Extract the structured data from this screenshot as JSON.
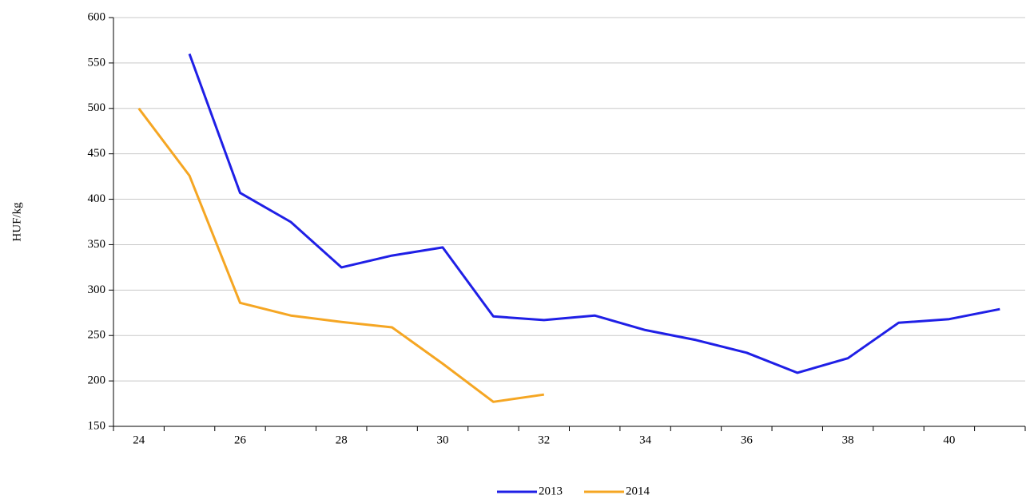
{
  "chart_data": {
    "type": "line",
    "y_label": "HUF/kg",
    "categories": [
      "24",
      null,
      "26",
      null,
      "28",
      null,
      "30",
      null,
      "32",
      null,
      "34",
      null,
      "36",
      null,
      "38",
      null,
      "40",
      null
    ],
    "series": [
      {
        "name": "2013",
        "color": "#1f1fe6",
        "values": [
          null,
          560,
          407,
          375,
          325,
          338,
          347,
          271,
          267,
          272,
          256,
          245,
          231,
          209,
          225,
          264,
          268,
          279
        ]
      },
      {
        "name": "2014",
        "color": "#f5a623",
        "values": [
          500,
          426,
          286,
          272,
          265,
          259,
          219,
          177,
          185,
          null,
          null,
          null,
          null,
          null,
          null,
          null,
          null,
          null
        ]
      }
    ],
    "ylim": [
      150,
      600
    ],
    "yticks": [
      150,
      200,
      250,
      300,
      350,
      400,
      450,
      500,
      550,
      600
    ],
    "grid": true,
    "legend": "bottom"
  }
}
